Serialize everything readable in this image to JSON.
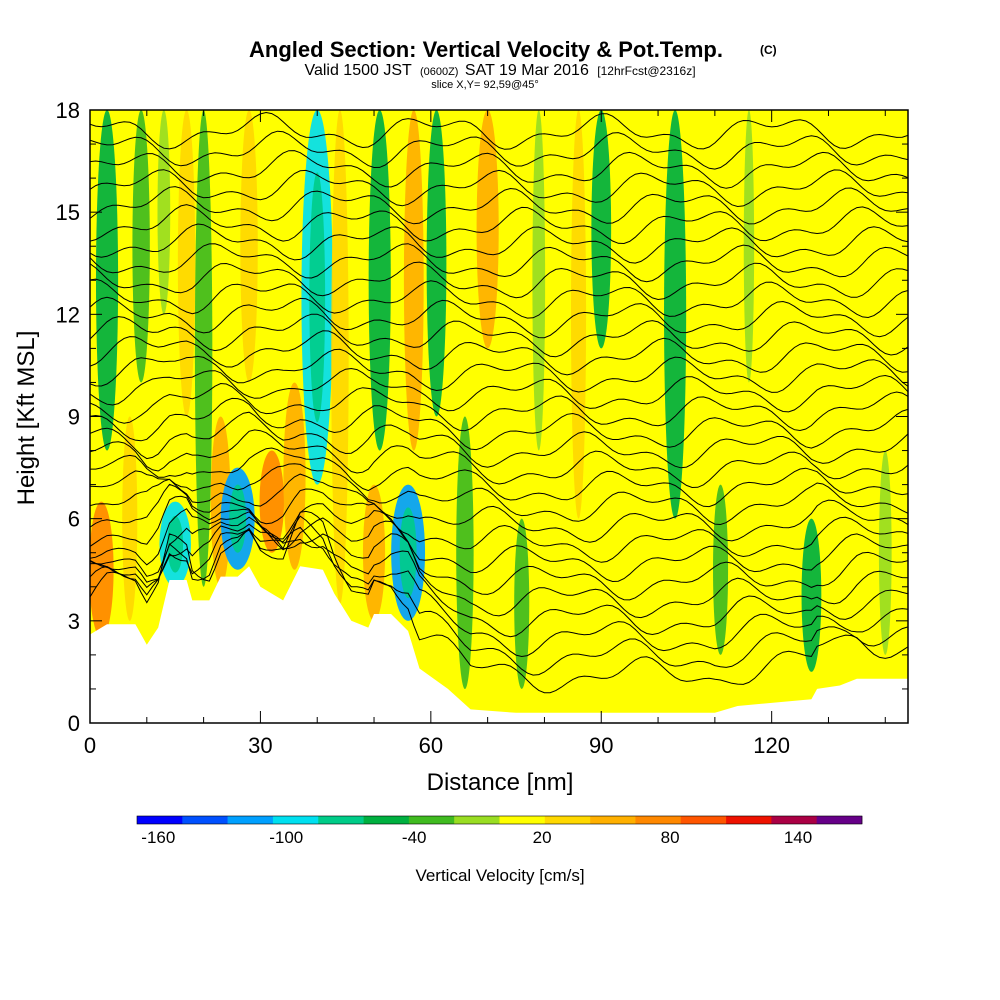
{
  "chart_data": {
    "type": "heatmap",
    "title": "Angled Section: Vertical Velocity & Pot.Temp.",
    "title_units": "(C)",
    "subtitle_valid": "Valid 1500 JST",
    "subtitle_z": "(0600Z)",
    "subtitle_date": "SAT 19 Mar 2016",
    "subtitle_fcst": "[12hrFcst@2316z]",
    "subtitle_slice": "slice X,Y= 92,59@45°",
    "xlabel": "Distance [nm]",
    "ylabel": "Height [Kft MSL]",
    "xlim": [
      0,
      144
    ],
    "ylim": [
      0,
      18
    ],
    "xticks": [
      0,
      30,
      60,
      90,
      120
    ],
    "yticks": [
      0,
      3,
      6,
      9,
      12,
      15,
      18
    ],
    "colorbar": {
      "label": "Vertical Velocity [cm/s]",
      "tick_values": [
        -160,
        -100,
        -40,
        20,
        80,
        140
      ],
      "tick_labels": [
        "-160",
        "-100",
        "-40",
        "20",
        "80",
        "140"
      ],
      "range": [
        -170,
        170
      ],
      "colors": [
        "#0000ff",
        "#0050ff",
        "#00a0ff",
        "#00e0f0",
        "#00cc88",
        "#00b040",
        "#40bb20",
        "#99dd22",
        "#ffff00",
        "#ffd800",
        "#ffb000",
        "#ff8800",
        "#ff5500",
        "#ee1100",
        "#aa0044",
        "#660088"
      ]
    },
    "velocity_features": [
      {
        "x": 2,
        "z_low": 2.5,
        "z_high": 6.5,
        "value": 70
      },
      {
        "x": 3,
        "z_low": 8,
        "z_high": 18,
        "value": -60
      },
      {
        "x": 7,
        "z_low": 3,
        "z_high": 9,
        "value": 30
      },
      {
        "x": 9,
        "z_low": 10,
        "z_high": 18,
        "value": -40
      },
      {
        "x": 13,
        "z_low": 12,
        "z_high": 18,
        "value": -20
      },
      {
        "x": 15,
        "z_low": 4,
        "z_high": 6.5,
        "value": -100
      },
      {
        "x": 17,
        "z_low": 9,
        "z_high": 18,
        "value": 40
      },
      {
        "x": 20,
        "z_low": 4,
        "z_high": 18,
        "value": -40
      },
      {
        "x": 23,
        "z_low": 4,
        "z_high": 9,
        "value": 50
      },
      {
        "x": 26,
        "z_low": 4.5,
        "z_high": 7.5,
        "value": -110
      },
      {
        "x": 28,
        "z_low": 10,
        "z_high": 18,
        "value": 40
      },
      {
        "x": 32,
        "z_low": 5,
        "z_high": 8,
        "value": 70
      },
      {
        "x": 36,
        "z_low": 4.5,
        "z_high": 10,
        "value": 60
      },
      {
        "x": 40,
        "z_low": 7,
        "z_high": 18,
        "value": -100
      },
      {
        "x": 44,
        "z_low": 3.5,
        "z_high": 18,
        "value": 40
      },
      {
        "x": 48,
        "z_low": 3,
        "z_high": 8,
        "value": 20
      },
      {
        "x": 51,
        "z_low": 8,
        "z_high": 18,
        "value": -60
      },
      {
        "x": 50,
        "z_low": 3,
        "z_high": 7,
        "value": 60
      },
      {
        "x": 56,
        "z_low": 3,
        "z_high": 7,
        "value": -110
      },
      {
        "x": 57,
        "z_low": 8,
        "z_high": 18,
        "value": 50
      },
      {
        "x": 61,
        "z_low": 9,
        "z_high": 18,
        "value": -50
      },
      {
        "x": 66,
        "z_low": 1,
        "z_high": 9,
        "value": -40
      },
      {
        "x": 70,
        "z_low": 11,
        "z_high": 18,
        "value": 60
      },
      {
        "x": 76,
        "z_low": 1,
        "z_high": 6,
        "value": -30
      },
      {
        "x": 79,
        "z_low": 8,
        "z_high": 18,
        "value": -20
      },
      {
        "x": 86,
        "z_low": 6,
        "z_high": 18,
        "value": 30
      },
      {
        "x": 90,
        "z_low": 11,
        "z_high": 18,
        "value": -50
      },
      {
        "x": 96,
        "z_low": 2,
        "z_high": 8,
        "value": 20
      },
      {
        "x": 103,
        "z_low": 6,
        "z_high": 18,
        "value": -60
      },
      {
        "x": 111,
        "z_low": 2,
        "z_high": 7,
        "value": -30
      },
      {
        "x": 116,
        "z_low": 10,
        "z_high": 18,
        "value": -10
      },
      {
        "x": 122,
        "z_low": 3,
        "z_high": 12,
        "value": 20
      },
      {
        "x": 127,
        "z_low": 1.5,
        "z_high": 6,
        "value": -50
      },
      {
        "x": 134,
        "z_low": 8,
        "z_high": 18,
        "value": 10
      },
      {
        "x": 140,
        "z_low": 2,
        "z_high": 8,
        "value": -20
      }
    ],
    "terrain": [
      {
        "x": 0,
        "z": 2.6
      },
      {
        "x": 3,
        "z": 2.9
      },
      {
        "x": 8,
        "z": 2.9
      },
      {
        "x": 10,
        "z": 2.3
      },
      {
        "x": 12,
        "z": 2.8
      },
      {
        "x": 14,
        "z": 4.2
      },
      {
        "x": 17,
        "z": 4.2
      },
      {
        "x": 18,
        "z": 3.6
      },
      {
        "x": 21,
        "z": 3.6
      },
      {
        "x": 23,
        "z": 4.3
      },
      {
        "x": 26,
        "z": 4.3
      },
      {
        "x": 28,
        "z": 4.6
      },
      {
        "x": 30,
        "z": 4.0
      },
      {
        "x": 32,
        "z": 3.8
      },
      {
        "x": 34,
        "z": 3.6
      },
      {
        "x": 37,
        "z": 4.6
      },
      {
        "x": 41,
        "z": 4.5
      },
      {
        "x": 43,
        "z": 3.8
      },
      {
        "x": 46,
        "z": 3.0
      },
      {
        "x": 49,
        "z": 2.8
      },
      {
        "x": 50,
        "z": 3.2
      },
      {
        "x": 53,
        "z": 3.2
      },
      {
        "x": 56,
        "z": 2.7
      },
      {
        "x": 58,
        "z": 1.6
      },
      {
        "x": 63,
        "z": 1.0
      },
      {
        "x": 67,
        "z": 0.4
      },
      {
        "x": 75,
        "z": 0.3
      },
      {
        "x": 110,
        "z": 0.3
      },
      {
        "x": 114,
        "z": 0.5
      },
      {
        "x": 127,
        "z": 0.7
      },
      {
        "x": 128,
        "z": 1.0
      },
      {
        "x": 132,
        "z": 1.1
      },
      {
        "x": 135,
        "z": 1.3
      },
      {
        "x": 144,
        "z": 1.3
      }
    ],
    "potential_temperature_contours": {
      "levels": 30,
      "interval": 1,
      "base_height": 1.4,
      "spacing": 0.55
    }
  }
}
